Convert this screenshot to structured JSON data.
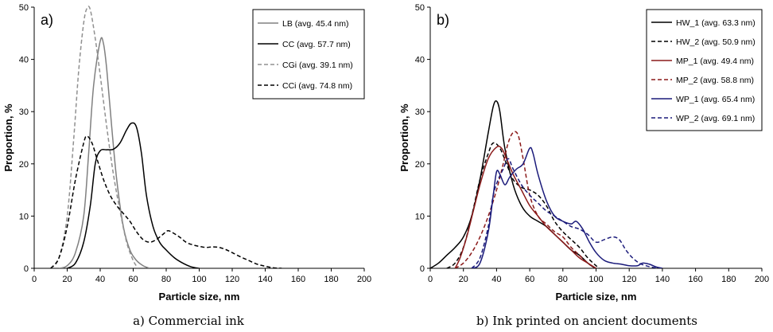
{
  "chart_data": [
    {
      "type": "line",
      "panel_label": "a)",
      "caption": "a) Commercial ink",
      "xlabel": "Particle size, nm",
      "ylabel": "Proportion, %",
      "xlim": [
        0,
        200
      ],
      "ylim": [
        0,
        50
      ],
      "xticks": [
        0,
        20,
        40,
        60,
        80,
        100,
        120,
        140,
        160,
        180,
        200
      ],
      "yticks": [
        0,
        10,
        20,
        30,
        40,
        50
      ],
      "legend_position": "top-right",
      "series": [
        {
          "name": "LB (avg. 45.4 nm)",
          "color": "#808080",
          "dash": "solid",
          "points": [
            [
              15,
              0
            ],
            [
              20,
              0.5
            ],
            [
              25,
              3
            ],
            [
              30,
              10
            ],
            [
              33,
              22
            ],
            [
              36,
              35
            ],
            [
              40,
              43.5
            ],
            [
              42,
              43
            ],
            [
              44,
              38
            ],
            [
              47,
              27
            ],
            [
              50,
              17
            ],
            [
              54,
              8
            ],
            [
              58,
              3.5
            ],
            [
              62,
              1.5
            ],
            [
              66,
              0.5
            ],
            [
              70,
              0
            ]
          ]
        },
        {
          "name": "CC (avg. 57.7 nm)",
          "color": "#000000",
          "dash": "solid",
          "points": [
            [
              20,
              0
            ],
            [
              25,
              1
            ],
            [
              30,
              5
            ],
            [
              34,
              12
            ],
            [
              37,
              20
            ],
            [
              40,
              22.5
            ],
            [
              44,
              22.7
            ],
            [
              48,
              22.8
            ],
            [
              52,
              24
            ],
            [
              56,
              26.5
            ],
            [
              59,
              27.8
            ],
            [
              62,
              27
            ],
            [
              65,
              22
            ],
            [
              68,
              14
            ],
            [
              72,
              8
            ],
            [
              76,
              5
            ],
            [
              80,
              3.5
            ],
            [
              85,
              2
            ],
            [
              90,
              1
            ],
            [
              95,
              0.3
            ],
            [
              100,
              0
            ]
          ]
        },
        {
          "name": "CGi (avg. 39.1 nm)",
          "color": "#909090",
          "dash": "dashed",
          "points": [
            [
              10,
              0
            ],
            [
              15,
              2
            ],
            [
              20,
              10
            ],
            [
              24,
              25
            ],
            [
              27,
              38
            ],
            [
              30,
              47
            ],
            [
              32,
              49.8
            ],
            [
              34,
              49.5
            ],
            [
              37,
              44
            ],
            [
              40,
              37
            ],
            [
              44,
              27
            ],
            [
              48,
              18
            ],
            [
              52,
              11
            ],
            [
              56,
              5
            ],
            [
              60,
              1.5
            ],
            [
              63,
              0
            ]
          ]
        },
        {
          "name": "CCi (avg. 74.8 nm)",
          "color": "#000000",
          "dash": "dashed",
          "points": [
            [
              10,
              0
            ],
            [
              15,
              2
            ],
            [
              20,
              8
            ],
            [
              25,
              17
            ],
            [
              30,
              24
            ],
            [
              32,
              25.3
            ],
            [
              35,
              24
            ],
            [
              38,
              21
            ],
            [
              42,
              17
            ],
            [
              46,
              14
            ],
            [
              50,
              12
            ],
            [
              54,
              10.5
            ],
            [
              58,
              9
            ],
            [
              62,
              7
            ],
            [
              66,
              5.5
            ],
            [
              70,
              5
            ],
            [
              74,
              5.5
            ],
            [
              78,
              6.5
            ],
            [
              81,
              7.2
            ],
            [
              84,
              6.8
            ],
            [
              88,
              6
            ],
            [
              92,
              5
            ],
            [
              96,
              4.5
            ],
            [
              100,
              4.2
            ],
            [
              104,
              4
            ],
            [
              108,
              4.1
            ],
            [
              112,
              4
            ],
            [
              116,
              3.6
            ],
            [
              120,
              3
            ],
            [
              125,
              2.2
            ],
            [
              130,
              1.5
            ],
            [
              135,
              0.8
            ],
            [
              140,
              0.4
            ],
            [
              145,
              0.1
            ],
            [
              150,
              0
            ]
          ]
        }
      ]
    },
    {
      "type": "line",
      "panel_label": "b)",
      "caption": "b) Ink printed on ancient documents",
      "xlabel": "Particle size, nm",
      "ylabel": "Proportion, %",
      "xlim": [
        0,
        200
      ],
      "ylim": [
        0,
        50
      ],
      "xticks": [
        0,
        20,
        40,
        60,
        80,
        100,
        120,
        140,
        160,
        180,
        200
      ],
      "yticks": [
        0,
        10,
        20,
        30,
        40,
        50
      ],
      "legend_position": "top-right",
      "series": [
        {
          "name": "HW_1 (avg. 63.3 nm)",
          "color": "#000000",
          "dash": "solid",
          "points": [
            [
              0,
              0
            ],
            [
              5,
              1
            ],
            [
              10,
              2.5
            ],
            [
              15,
              4
            ],
            [
              20,
              6
            ],
            [
              25,
              10
            ],
            [
              30,
              17
            ],
            [
              35,
              26
            ],
            [
              38,
              31
            ],
            [
              40,
              32
            ],
            [
              42,
              30
            ],
            [
              45,
              23
            ],
            [
              50,
              16
            ],
            [
              55,
              12
            ],
            [
              60,
              10
            ],
            [
              65,
              9
            ],
            [
              70,
              8
            ],
            [
              75,
              6.5
            ],
            [
              80,
              5
            ],
            [
              85,
              3.5
            ],
            [
              90,
              2.5
            ],
            [
              95,
              1
            ],
            [
              98,
              0.3
            ],
            [
              100,
              0
            ]
          ]
        },
        {
          "name": "HW_2 (avg. 50.9 nm)",
          "color": "#000000",
          "dash": "dashed",
          "points": [
            [
              10,
              0
            ],
            [
              15,
              1
            ],
            [
              20,
              4
            ],
            [
              25,
              10
            ],
            [
              30,
              17
            ],
            [
              35,
              22
            ],
            [
              38,
              24
            ],
            [
              42,
              23
            ],
            [
              46,
              20
            ],
            [
              50,
              17
            ],
            [
              55,
              15.5
            ],
            [
              60,
              15
            ],
            [
              65,
              14
            ],
            [
              70,
              12
            ],
            [
              75,
              9
            ],
            [
              80,
              7
            ],
            [
              85,
              5.5
            ],
            [
              90,
              4
            ],
            [
              95,
              2
            ],
            [
              100,
              0.5
            ],
            [
              102,
              0
            ]
          ]
        },
        {
          "name": "MP_1 (avg. 49.4 nm)",
          "color": "#8b1a1a",
          "dash": "solid",
          "points": [
            [
              15,
              0
            ],
            [
              18,
              2
            ],
            [
              22,
              6
            ],
            [
              26,
              11
            ],
            [
              30,
              16
            ],
            [
              35,
              21
            ],
            [
              40,
              23.2
            ],
            [
              43,
              23
            ],
            [
              46,
              21
            ],
            [
              50,
              18
            ],
            [
              55,
              15
            ],
            [
              60,
              12
            ],
            [
              65,
              10
            ],
            [
              70,
              8
            ],
            [
              75,
              6.5
            ],
            [
              80,
              5
            ],
            [
              85,
              3.5
            ],
            [
              90,
              2
            ],
            [
              95,
              1
            ],
            [
              100,
              0
            ]
          ]
        },
        {
          "name": "MP_2 (avg. 58.8 nm)",
          "color": "#8b1a1a",
          "dash": "dashed",
          "points": [
            [
              15,
              0
            ],
            [
              20,
              1
            ],
            [
              25,
              3
            ],
            [
              30,
              6
            ],
            [
              35,
              10
            ],
            [
              40,
              15
            ],
            [
              44,
              20
            ],
            [
              47,
              24
            ],
            [
              50,
              26
            ],
            [
              53,
              25.5
            ],
            [
              56,
              21
            ],
            [
              60,
              14
            ],
            [
              65,
              10
            ],
            [
              70,
              8.5
            ],
            [
              75,
              7
            ],
            [
              80,
              6
            ],
            [
              85,
              4
            ],
            [
              90,
              2.5
            ],
            [
              95,
              1
            ],
            [
              100,
              0
            ]
          ]
        },
        {
          "name": "WP_1 (avg. 65.4 nm)",
          "color": "#1a1a7a",
          "dash": "solid",
          "points": [
            [
              25,
              0
            ],
            [
              30,
              1
            ],
            [
              35,
              7
            ],
            [
              38,
              14
            ],
            [
              40,
              18.5
            ],
            [
              42,
              18
            ],
            [
              45,
              16
            ],
            [
              48,
              17.5
            ],
            [
              52,
              19
            ],
            [
              56,
              20
            ],
            [
              60,
              23
            ],
            [
              62,
              22
            ],
            [
              65,
              18
            ],
            [
              70,
              13
            ],
            [
              75,
              10
            ],
            [
              80,
              9
            ],
            [
              85,
              8.5
            ],
            [
              88,
              9
            ],
            [
              92,
              7.5
            ],
            [
              96,
              5
            ],
            [
              100,
              3
            ],
            [
              105,
              1.5
            ],
            [
              110,
              1
            ],
            [
              115,
              0.8
            ],
            [
              120,
              0.5
            ],
            [
              125,
              0.5
            ],
            [
              128,
              1
            ],
            [
              132,
              0.8
            ],
            [
              136,
              0.3
            ],
            [
              140,
              0
            ]
          ]
        },
        {
          "name": "WP_2 (avg. 69.1 nm)",
          "color": "#1a1a7a",
          "dash": "dashed",
          "points": [
            [
              25,
              0
            ],
            [
              30,
              2
            ],
            [
              35,
              8
            ],
            [
              38,
              14
            ],
            [
              41,
              17
            ],
            [
              44,
              19
            ],
            [
              47,
              21
            ],
            [
              50,
              19
            ],
            [
              55,
              16
            ],
            [
              60,
              14
            ],
            [
              65,
              12.5
            ],
            [
              70,
              11
            ],
            [
              75,
              10
            ],
            [
              80,
              9
            ],
            [
              85,
              8
            ],
            [
              90,
              7.5
            ],
            [
              95,
              6.5
            ],
            [
              100,
              5
            ],
            [
              105,
              5.5
            ],
            [
              110,
              6
            ],
            [
              114,
              5.5
            ],
            [
              118,
              3.5
            ],
            [
              122,
              2
            ],
            [
              126,
              1
            ],
            [
              130,
              0.5
            ],
            [
              134,
              0.2
            ],
            [
              138,
              0
            ]
          ]
        }
      ]
    }
  ]
}
